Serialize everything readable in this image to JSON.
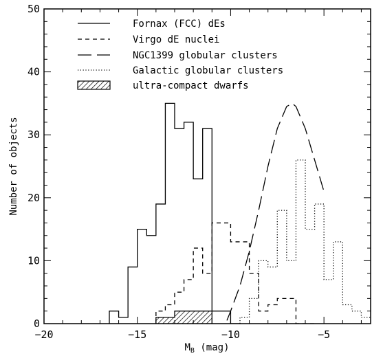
{
  "chart_data": {
    "type": "histogram",
    "xlabel": "M",
    "xlabel_sub": "B",
    "xlabel_unit": "(mag)",
    "ylabel": "Number of objects",
    "xlim": [
      -20,
      -2.5
    ],
    "ylim": [
      0,
      50
    ],
    "xticks": [
      -20,
      -15,
      -10,
      -5
    ],
    "xtick_labels": [
      "−20",
      "−15",
      "−10",
      "−5"
    ],
    "yticks": [
      0,
      10,
      20,
      30,
      40,
      50
    ],
    "ytick_labels": [
      "0",
      "10",
      "20",
      "30",
      "40",
      "50"
    ],
    "legend_position": "top-left",
    "series": [
      {
        "name": "Fornax (FCC) dEs",
        "style": "solid",
        "type": "step",
        "bin_width": 0.5,
        "x": [
          -16.5,
          -16.0,
          -15.5,
          -15.0,
          -14.5,
          -14.0,
          -13.5,
          -13.0,
          -12.5,
          -12.0,
          -11.5,
          -11.0,
          -10.5,
          -10.0
        ],
        "values": [
          2,
          1,
          9,
          15,
          14,
          19,
          35,
          31,
          32,
          23,
          31,
          2,
          2,
          0
        ]
      },
      {
        "name": "Virgo dE nuclei",
        "style": "short-dash",
        "type": "step",
        "bin_width": 0.5,
        "x": [
          -14.0,
          -13.5,
          -13.0,
          -12.5,
          -12.0,
          -11.5,
          -11.0,
          -10.5,
          -10.0,
          -9.5,
          -9.0,
          -8.5,
          -8.0,
          -7.5,
          -7.0,
          -6.5,
          -6.0
        ],
        "values": [
          2,
          3,
          5,
          7,
          12,
          8,
          16,
          16,
          13,
          13,
          8,
          2,
          3,
          4,
          4,
          0,
          0
        ]
      },
      {
        "name": "NGC1399 globular clusters",
        "style": "long-dash",
        "type": "curve",
        "x": [
          -10.2,
          -10.0,
          -9.5,
          -9.0,
          -8.5,
          -8.0,
          -7.5,
          -7.0,
          -6.7,
          -6.5,
          -6.0,
          -5.5,
          -5.0
        ],
        "values": [
          0.5,
          2,
          6,
          11.5,
          18,
          25,
          31,
          34.5,
          35,
          34.5,
          31,
          26,
          21
        ]
      },
      {
        "name": "Galactic globular clusters",
        "style": "dotted",
        "type": "step",
        "bin_width": 0.5,
        "x": [
          -9.5,
          -9.0,
          -8.5,
          -8.0,
          -7.5,
          -7.0,
          -6.5,
          -6.0,
          -5.5,
          -5.0,
          -4.5,
          -4.0,
          -3.5,
          -3.0,
          -2.5
        ],
        "values": [
          1,
          4,
          10,
          9,
          18,
          10,
          26,
          15,
          19,
          7,
          13,
          3,
          2,
          1,
          1
        ]
      },
      {
        "name": "ultra-compact dwarfs",
        "style": "hatched",
        "type": "step",
        "bin_width": 0.5,
        "x": [
          -14.0,
          -13.5,
          -13.0,
          -12.5,
          -12.0,
          -11.5
        ],
        "values": [
          1,
          1,
          2,
          2,
          2,
          2
        ]
      }
    ]
  }
}
